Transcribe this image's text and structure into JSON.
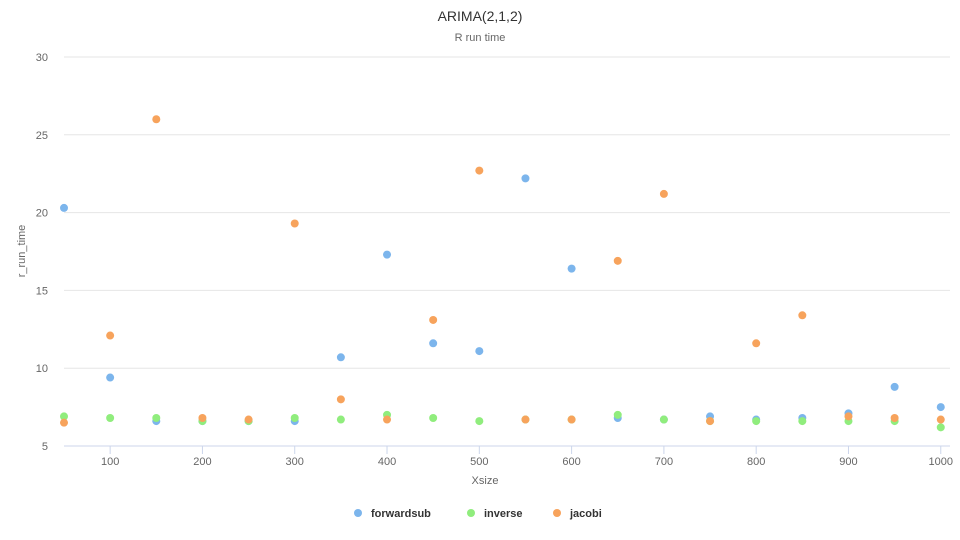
{
  "chart_data": {
    "type": "scatter",
    "title": "ARIMA(2,1,2)",
    "subtitle": "R run time",
    "xlabel": "Xsize",
    "ylabel": "r_run_time",
    "xlim": [
      50,
      1010
    ],
    "ylim": [
      5,
      30
    ],
    "xticks": [
      100,
      200,
      300,
      400,
      500,
      600,
      700,
      800,
      900,
      1000
    ],
    "yticks": [
      5,
      10,
      15,
      20,
      25,
      30
    ],
    "grid": "horizontal",
    "legend_position": "bottom-center",
    "series": [
      {
        "name": "forwardsub",
        "color": "#7cb5ec",
        "points": [
          [
            50,
            20.3
          ],
          [
            100,
            9.4
          ],
          [
            150,
            6.6
          ],
          [
            200,
            6.6
          ],
          [
            250,
            6.6
          ],
          [
            300,
            6.6
          ],
          [
            350,
            10.7
          ],
          [
            400,
            17.3
          ],
          [
            450,
            11.6
          ],
          [
            500,
            11.1
          ],
          [
            550,
            22.2
          ],
          [
            600,
            16.4
          ],
          [
            650,
            6.8
          ],
          [
            700,
            6.7
          ],
          [
            750,
            6.9
          ],
          [
            800,
            6.7
          ],
          [
            850,
            6.8
          ],
          [
            900,
            7.1
          ],
          [
            950,
            8.8
          ],
          [
            1000,
            7.5
          ]
        ]
      },
      {
        "name": "inverse",
        "color": "#90ed7d",
        "points": [
          [
            50,
            6.9
          ],
          [
            100,
            6.8
          ],
          [
            150,
            6.8
          ],
          [
            200,
            6.6
          ],
          [
            250,
            6.6
          ],
          [
            300,
            6.8
          ],
          [
            350,
            6.7
          ],
          [
            400,
            7.0
          ],
          [
            450,
            6.8
          ],
          [
            500,
            6.6
          ],
          [
            550,
            6.7
          ],
          [
            600,
            6.7
          ],
          [
            650,
            7.0
          ],
          [
            700,
            6.7
          ],
          [
            750,
            6.6
          ],
          [
            800,
            6.6
          ],
          [
            850,
            6.6
          ],
          [
            900,
            6.6
          ],
          [
            950,
            6.6
          ],
          [
            1000,
            6.2
          ]
        ]
      },
      {
        "name": "jacobi",
        "color": "#f7a35c",
        "points": [
          [
            50,
            6.5
          ],
          [
            100,
            12.1
          ],
          [
            150,
            26.0
          ],
          [
            200,
            6.8
          ],
          [
            250,
            6.7
          ],
          [
            300,
            19.3
          ],
          [
            350,
            8.0
          ],
          [
            400,
            6.7
          ],
          [
            450,
            13.1
          ],
          [
            500,
            22.7
          ],
          [
            550,
            6.7
          ],
          [
            600,
            6.7
          ],
          [
            650,
            16.9
          ],
          [
            700,
            21.2
          ],
          [
            750,
            6.6
          ],
          [
            800,
            11.6
          ],
          [
            850,
            13.4
          ],
          [
            900,
            6.9
          ],
          [
            950,
            6.8
          ],
          [
            1000,
            6.7
          ]
        ]
      }
    ]
  }
}
